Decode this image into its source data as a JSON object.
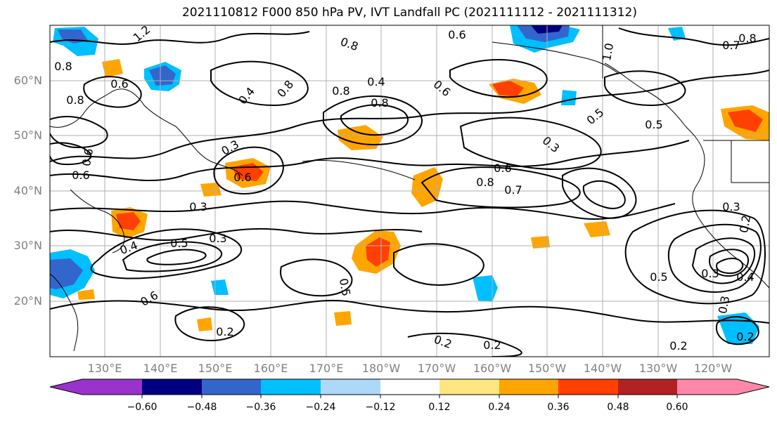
{
  "title": "2021110812 F000 850 hPa PV, IVT Landfall PC (2021111112 - 2021111312)",
  "lat_labels": [
    "60°N",
    "50°N",
    "40°N",
    "30°N",
    "20°N"
  ],
  "lon_labels": [
    "130°E",
    "140°E",
    "150°E",
    "160°E",
    "170°E",
    "180°W",
    "170°W",
    "160°W",
    "150°W",
    "140°W",
    "130°W",
    "120°W"
  ],
  "colorbar": {
    "ticks": [
      "−0.60",
      "−0.48",
      "−0.36",
      "−0.24",
      "−0.12",
      "0.12",
      "0.24",
      "0.36",
      "0.48",
      "0.60"
    ],
    "colors": [
      "#9933cc",
      "#000080",
      "#3366cc",
      "#00bfff",
      "#add8f8",
      "#ffffff",
      "#ffe680",
      "#ffa500",
      "#ff4000",
      "#b22222",
      "#ff88aa"
    ]
  },
  "contour_labels": [
    "1.2",
    "0.8",
    "0.7",
    "0.8",
    "1.0",
    "0.8",
    "0.6",
    "0.8",
    "0.4",
    "0.6",
    "0.8",
    "0.5",
    "0.8",
    "0.4",
    "0.3",
    "0.5",
    "0.6",
    "0.6",
    "0.6",
    "0.8",
    "0.7",
    "0.3",
    "0.5",
    "0.3",
    "0.3",
    "0.4",
    "0.6",
    "0.5",
    "0.2",
    "0.2",
    "0.2",
    "0.2",
    "0.2",
    "0.5",
    "0.3",
    "0.3",
    "0.4",
    "0.6",
    "0.6",
    "0.3",
    "0.2",
    "0.8"
  ]
}
